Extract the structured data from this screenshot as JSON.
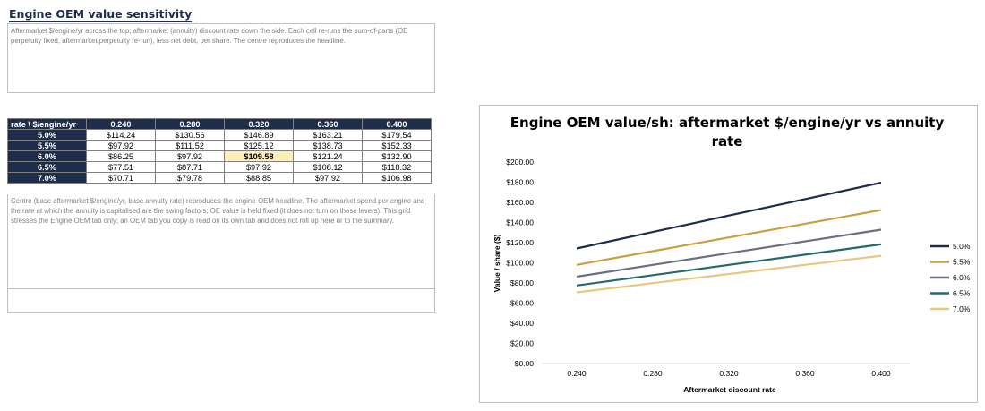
{
  "title": "Engine OEM value sensitivity",
  "description": "Aftermarket $/engine/yr across the top; aftermarket (annuity) discount rate down the side. Each cell re-runs the sum-of-parts (OE perpetuity fixed, aftermarket perpetuity re-run), less net debt, per share. The centre reproduces the headline.",
  "note": "Centre (base aftermarket $/engine/yr, base annuity rate) reproduces the engine-OEM headline. The aftermarket spend per engine and the rate at which the annuity is capitalised are the swing factors; OE value is held fixed (it does not turn on these levers). This grid stresses the Engine OEM tab only; an OEM tab you copy is read on its own tab and does not roll up here or to the summary.",
  "table": {
    "corner": "rate \\ $/engine/yr",
    "columns": [
      "0.240",
      "0.280",
      "0.320",
      "0.360",
      "0.400"
    ],
    "rows": [
      {
        "label": "5.0%",
        "cells": [
          "$114.24",
          "$130.56",
          "$146.89",
          "$163.21",
          "$179.54"
        ]
      },
      {
        "label": "5.5%",
        "cells": [
          "$97.92",
          "$111.52",
          "$125.12",
          "$138.73",
          "$152.33"
        ]
      },
      {
        "label": "6.0%",
        "cells": [
          "$86.25",
          "$97.92",
          "$109.58",
          "$121.24",
          "$132.90"
        ]
      },
      {
        "label": "6.5%",
        "cells": [
          "$77.51",
          "$87.71",
          "$97.92",
          "$108.12",
          "$118.32"
        ]
      },
      {
        "label": "7.0%",
        "cells": [
          "$70.71",
          "$79.78",
          "$88.85",
          "$97.92",
          "$106.98"
        ]
      }
    ],
    "highlight": {
      "row": 2,
      "col": 2
    }
  },
  "chart_data": {
    "type": "line",
    "title": "Engine OEM value/sh: aftermarket $/engine/yr vs annuity rate",
    "xlabel": "Aftermarket discount rate",
    "ylabel": "Value / share ($)",
    "x": [
      "0.240",
      "0.280",
      "0.320",
      "0.360",
      "0.400"
    ],
    "ylim": [
      0,
      200
    ],
    "yticks": [
      "$0.00",
      "$20.00",
      "$40.00",
      "$60.00",
      "$80.00",
      "$100.00",
      "$120.00",
      "$140.00",
      "$160.00",
      "$180.00",
      "$200.00"
    ],
    "grid": false,
    "legend": "right",
    "series": [
      {
        "name": "5.0%",
        "color": "#1f2d4d",
        "values": [
          114.24,
          130.56,
          146.89,
          163.21,
          179.54
        ]
      },
      {
        "name": "5.5%",
        "color": "#c8a040",
        "values": [
          97.92,
          111.52,
          125.12,
          138.73,
          152.33
        ]
      },
      {
        "name": "6.0%",
        "color": "#6b7080",
        "values": [
          86.25,
          97.92,
          109.58,
          121.24,
          132.9
        ]
      },
      {
        "name": "6.5%",
        "color": "#256a70",
        "values": [
          77.51,
          87.71,
          97.92,
          108.12,
          118.32
        ]
      },
      {
        "name": "7.0%",
        "color": "#e6c880",
        "values": [
          70.71,
          79.78,
          88.85,
          97.92,
          106.98
        ]
      }
    ]
  }
}
